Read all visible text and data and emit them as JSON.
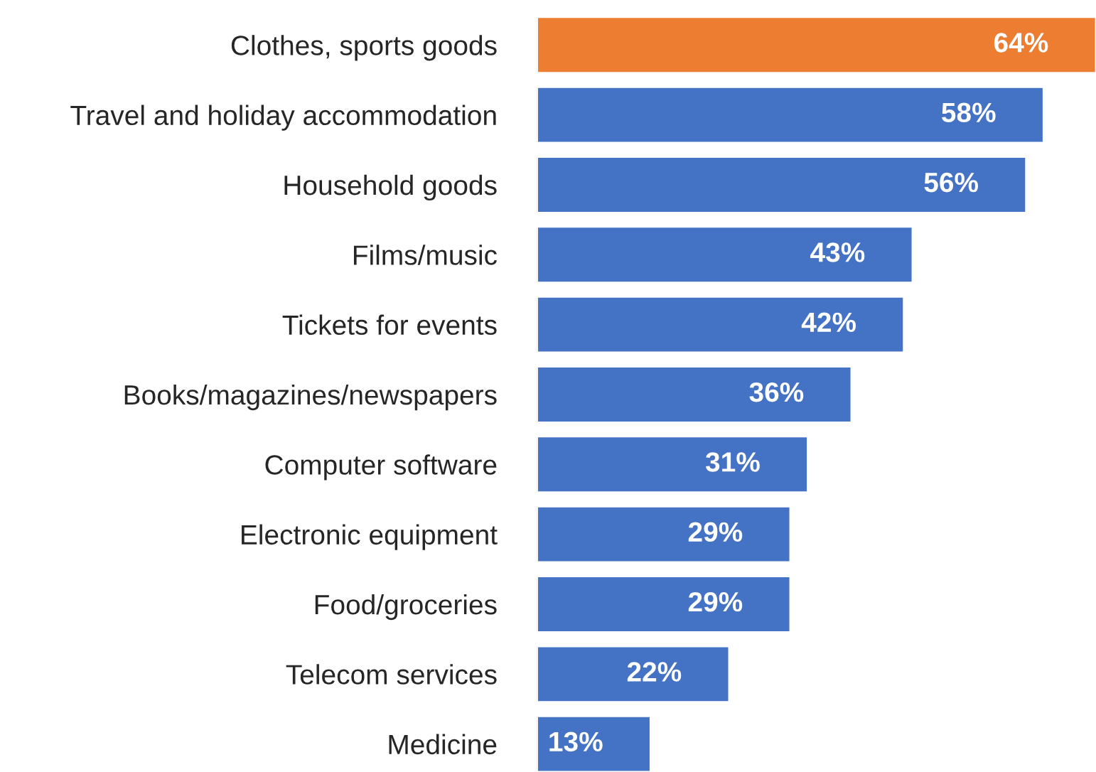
{
  "chart_data": {
    "type": "bar",
    "orientation": "horizontal",
    "categories": [
      "Clothes, sports goods",
      "Travel and holiday accommodation",
      "Household goods",
      "Films/music",
      "Tickets for events",
      "Books/magazines/newspapers",
      "Computer software",
      "Electronic equipment",
      "Food/groceries",
      "Telecom services",
      "Medicine"
    ],
    "values": [
      64,
      58,
      56,
      43,
      42,
      36,
      31,
      29,
      29,
      22,
      13
    ],
    "value_labels": [
      "64%",
      "58%",
      "56%",
      "43%",
      "42%",
      "36%",
      "31%",
      "29%",
      "29%",
      "22%",
      "13%"
    ],
    "colors": [
      "#ed7d31",
      "#4472c4",
      "#4472c4",
      "#4472c4",
      "#4472c4",
      "#4472c4",
      "#4472c4",
      "#4472c4",
      "#4472c4",
      "#4472c4",
      "#4472c4"
    ],
    "grid": false,
    "legend": false
  }
}
